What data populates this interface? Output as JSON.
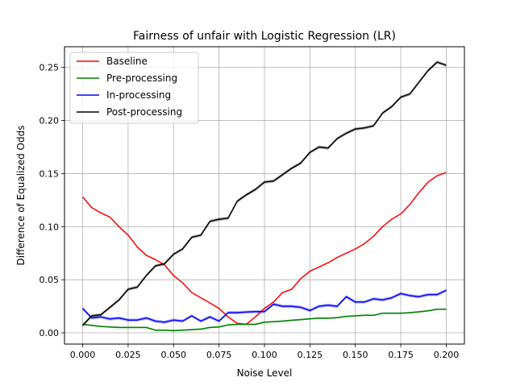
{
  "chart_data": {
    "type": "line",
    "title": "Fairness of unfair with Logistic Regression (LR)",
    "xlabel": "Noise Level",
    "ylabel": "Difference of Equalized Odds",
    "xlim": [
      -0.01,
      0.21
    ],
    "ylim": [
      -0.0106,
      0.2695
    ],
    "xticks": [
      0.0,
      0.025,
      0.05,
      0.075,
      0.1,
      0.125,
      0.15,
      0.175,
      0.2
    ],
    "xtick_labels": [
      "0.000",
      "0.025",
      "0.050",
      "0.075",
      "0.100",
      "0.125",
      "0.150",
      "0.175",
      "0.200"
    ],
    "yticks": [
      0.0,
      0.05,
      0.1,
      0.15,
      0.2,
      0.25
    ],
    "ytick_labels": [
      "0.00",
      "0.05",
      "0.10",
      "0.15",
      "0.20",
      "0.25"
    ],
    "grid": true,
    "legend_position": "top-left",
    "x": [
      0.0,
      0.005,
      0.01,
      0.015,
      0.02,
      0.025,
      0.03,
      0.035,
      0.04,
      0.045,
      0.05,
      0.055,
      0.06,
      0.065,
      0.07,
      0.075,
      0.08,
      0.085,
      0.09,
      0.095,
      0.1,
      0.105,
      0.11,
      0.115,
      0.12,
      0.125,
      0.13,
      0.135,
      0.14,
      0.145,
      0.15,
      0.155,
      0.16,
      0.165,
      0.17,
      0.175,
      0.18,
      0.185,
      0.19,
      0.195,
      0.2
    ],
    "series": [
      {
        "name": "Baseline",
        "color": "#ff0000",
        "values": [
          0.128,
          0.118,
          0.113,
          0.109,
          0.1,
          0.092,
          0.081,
          0.073,
          0.069,
          0.064,
          0.054,
          0.047,
          0.038,
          0.033,
          0.028,
          0.023,
          0.015,
          0.009,
          0.008,
          0.015,
          0.023,
          0.029,
          0.038,
          0.041,
          0.051,
          0.058,
          0.062,
          0.066,
          0.071,
          0.075,
          0.079,
          0.084,
          0.091,
          0.1,
          0.107,
          0.112,
          0.121,
          0.132,
          0.142,
          0.148,
          0.151
        ],
        "band": 0.0
      },
      {
        "name": "Pre-processing",
        "color": "#008000",
        "values": [
          0.008,
          0.007,
          0.006,
          0.0055,
          0.005,
          0.005,
          0.005,
          0.005,
          0.0025,
          0.0025,
          0.002,
          0.0025,
          0.003,
          0.0035,
          0.005,
          0.0055,
          0.0075,
          0.008,
          0.008,
          0.008,
          0.01,
          0.0105,
          0.011,
          0.0118,
          0.0125,
          0.0132,
          0.0138,
          0.0138,
          0.0143,
          0.0155,
          0.016,
          0.0165,
          0.0165,
          0.0185,
          0.0185,
          0.0185,
          0.019,
          0.0198,
          0.0207,
          0.0222,
          0.0222
        ],
        "band": 0.0008
      },
      {
        "name": "In-processing",
        "color": "#0000ff",
        "values": [
          0.023,
          0.014,
          0.015,
          0.013,
          0.014,
          0.012,
          0.012,
          0.014,
          0.011,
          0.01,
          0.012,
          0.011,
          0.016,
          0.011,
          0.015,
          0.011,
          0.019,
          0.019,
          0.0195,
          0.02,
          0.02,
          0.027,
          0.025,
          0.025,
          0.024,
          0.021,
          0.025,
          0.026,
          0.025,
          0.034,
          0.029,
          0.029,
          0.032,
          0.031,
          0.033,
          0.037,
          0.035,
          0.034,
          0.036,
          0.036,
          0.04
        ],
        "band": 0.0015
      },
      {
        "name": "Post-processing",
        "color": "#000000",
        "values": [
          0.007,
          0.016,
          0.017,
          0.024,
          0.031,
          0.041,
          0.043,
          0.054,
          0.063,
          0.065,
          0.074,
          0.079,
          0.09,
          0.092,
          0.105,
          0.107,
          0.108,
          0.124,
          0.13,
          0.135,
          0.142,
          0.143,
          0.149,
          0.155,
          0.16,
          0.17,
          0.175,
          0.174,
          0.183,
          0.188,
          0.192,
          0.193,
          0.195,
          0.207,
          0.213,
          0.222,
          0.225,
          0.236,
          0.247,
          0.255,
          0.252
        ],
        "band": 0.0015
      }
    ]
  }
}
